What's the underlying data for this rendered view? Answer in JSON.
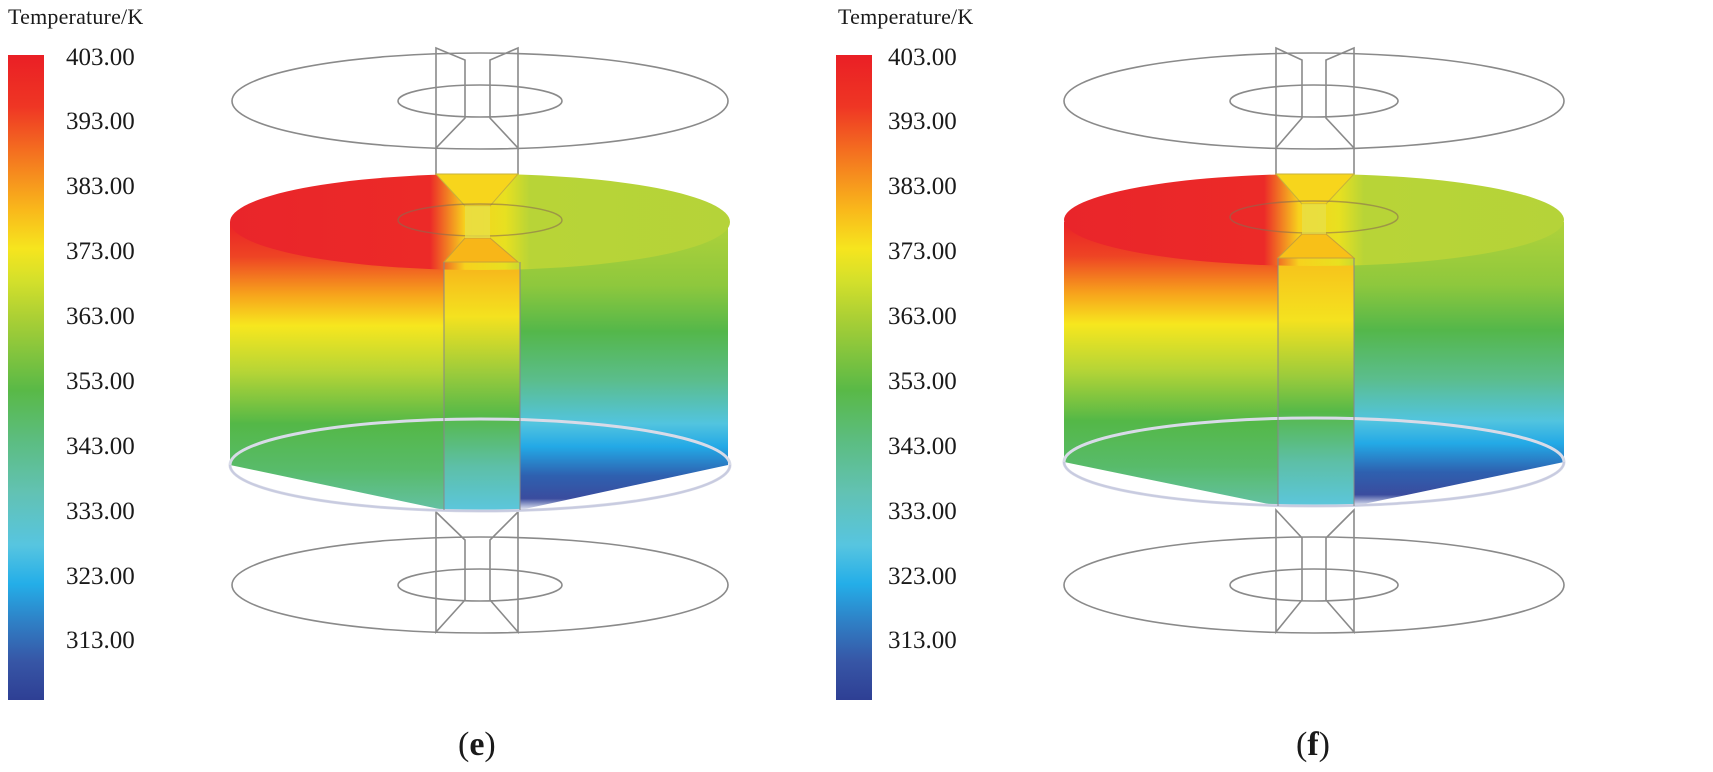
{
  "legend": {
    "title": "Temperature/K",
    "ticks": [
      "403.00",
      "393.00",
      "383.00",
      "373.00",
      "363.00",
      "353.00",
      "343.00",
      "333.00",
      "323.00",
      "313.00"
    ]
  },
  "panels": [
    {
      "id": "e",
      "label": "e"
    },
    {
      "id": "f",
      "label": "f"
    }
  ],
  "colors": {
    "max": "#ea1f25",
    "min": "#2e3f94",
    "wireframe": "#8a8a8a"
  }
}
